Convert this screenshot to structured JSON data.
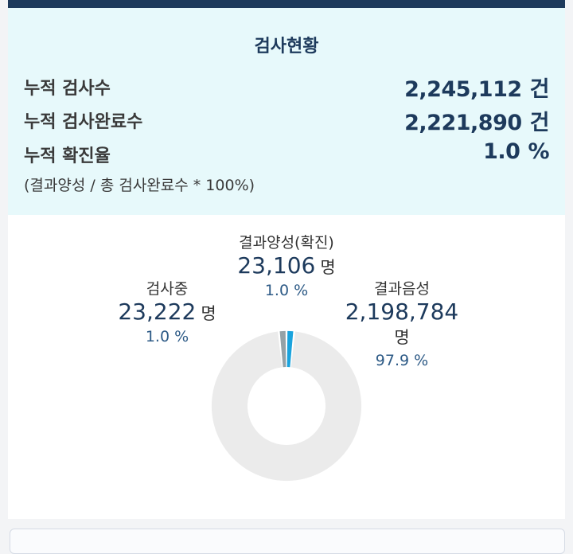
{
  "stats": {
    "title": "검사현황",
    "rows": [
      {
        "label": "누적 검사수",
        "value": "2,245,112",
        "unit": "건"
      },
      {
        "label": "누적 검사완료수",
        "value": "2,221,890",
        "unit": "건"
      },
      {
        "label": "누적 확진율",
        "value": "1.0",
        "unit": "%"
      }
    ],
    "note": "(결과양성 / 총 검사완료수 * 100%)"
  },
  "chart_data": {
    "type": "pie",
    "donut": true,
    "segments": [
      {
        "name": "결과양성(확진)",
        "count": "23,106",
        "unit": "명",
        "percent": "1.0 %",
        "value": 23106,
        "color": "#1aa3dd"
      },
      {
        "name": "결과음성",
        "count": "2,198,784",
        "unit": "명",
        "percent": "97.9 %",
        "value": 2198784,
        "color": "#ebebeb"
      },
      {
        "name": "검사중",
        "count": "23,222",
        "unit": "명",
        "percent": "1.0 %",
        "value": 23222,
        "color": "#95a2a7"
      }
    ]
  }
}
